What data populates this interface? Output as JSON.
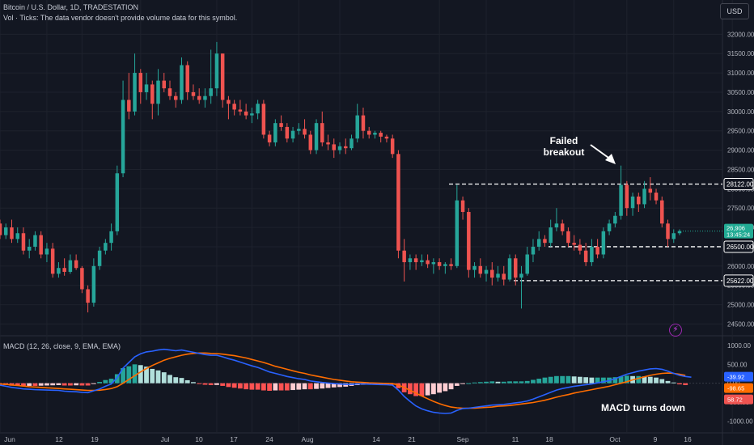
{
  "header": {
    "symbol_line": "Bitcoin / U.S. Dollar, 1D, TRADESTATION",
    "volume_note": "Vol · Ticks: The data vendor doesn't provide volume data for this symbol.",
    "currency_button": "USD",
    "macd_title": "MACD (12, 26, close, 9, EMA, EMA)"
  },
  "colors": {
    "background": "#131722",
    "up": "#26a69a",
    "down": "#ef5350",
    "macd_line": "#2962ff",
    "signal_line": "#ff6d00",
    "price_badge": "#22ab94",
    "grid": "#1e222d",
    "text": "#b2b5be"
  },
  "icons": {
    "alert": "lightning-bolt-icon"
  },
  "chart_data": [
    {
      "type": "candlestick",
      "title": "Bitcoin / U.S. Dollar, 1D",
      "y_ticks": [
        32000,
        31500,
        31000,
        30500,
        30000,
        29500,
        29000,
        28500,
        28000,
        27500,
        27000,
        26500,
        26000,
        25500,
        25000,
        24500
      ],
      "ylim": [
        24300,
        32300
      ],
      "x_tick_labels": [
        "Jun",
        "12",
        "19",
        "Jul",
        "10",
        "17",
        "24",
        "Aug",
        "14",
        "21",
        "Sep",
        "11",
        "18",
        "Oct",
        "9",
        "16"
      ],
      "last_price_label": "26,906",
      "countdown": "13:45:24",
      "price_lines": [
        {
          "label": "28122.00",
          "value": 28122
        },
        {
          "label": "26500.00",
          "value": 26500
        },
        {
          "label": "25622.00",
          "value": 25622
        }
      ],
      "annotations": [
        {
          "text_line1": "Failed",
          "text_line2": "breakout"
        }
      ],
      "candles": [
        [
          27100,
          27200,
          26700,
          26800
        ],
        [
          26800,
          27100,
          26700,
          27000
        ],
        [
          27000,
          27200,
          26600,
          26700
        ],
        [
          26700,
          27000,
          26600,
          26850
        ],
        [
          26850,
          27000,
          26300,
          26400
        ],
        [
          26400,
          26700,
          26200,
          26500
        ],
        [
          26500,
          26900,
          26400,
          26800
        ],
        [
          26800,
          26900,
          26200,
          26300
        ],
        [
          26300,
          26600,
          26100,
          26450
        ],
        [
          26450,
          26600,
          25700,
          25800
        ],
        [
          25800,
          26100,
          25700,
          25950
        ],
        [
          25950,
          26200,
          25750,
          25850
        ],
        [
          25850,
          26300,
          25800,
          26150
        ],
        [
          26150,
          26300,
          25900,
          25950
        ],
        [
          25950,
          26000,
          25300,
          25400
        ],
        [
          25400,
          25500,
          24800,
          25050
        ],
        [
          25050,
          26200,
          24950,
          26000
        ],
        [
          26000,
          26500,
          25900,
          26400
        ],
        [
          26400,
          26700,
          26300,
          26600
        ],
        [
          26600,
          27100,
          26400,
          26900
        ],
        [
          26900,
          28600,
          26800,
          28400
        ],
        [
          28400,
          30800,
          28300,
          30300
        ],
        [
          30300,
          31000,
          29800,
          30000
        ],
        [
          30000,
          31500,
          29900,
          31000
        ],
        [
          31000,
          31100,
          30200,
          30500
        ],
        [
          30500,
          31000,
          30300,
          30700
        ],
        [
          30700,
          30800,
          29800,
          30200
        ],
        [
          30200,
          31100,
          29900,
          30800
        ],
        [
          30800,
          31000,
          30500,
          30600
        ],
        [
          30600,
          30800,
          30300,
          30400
        ],
        [
          30400,
          30500,
          30100,
          30300
        ],
        [
          30300,
          31400,
          30200,
          31200
        ],
        [
          31200,
          31300,
          30300,
          30500
        ],
        [
          30500,
          30700,
          30300,
          30400
        ],
        [
          30400,
          30600,
          30200,
          30300
        ],
        [
          30300,
          30600,
          30100,
          30400
        ],
        [
          30400,
          31600,
          30200,
          30600
        ],
        [
          30600,
          31800,
          30400,
          31500
        ],
        [
          31500,
          31500,
          30100,
          30300
        ],
        [
          30300,
          30400,
          29800,
          30200
        ],
        [
          30200,
          30300,
          29900,
          30050
        ],
        [
          30050,
          30300,
          29900,
          30000
        ],
        [
          30000,
          30200,
          29800,
          29900
        ],
        [
          29900,
          30100,
          29700,
          29950
        ],
        [
          29950,
          30300,
          29800,
          30200
        ],
        [
          30200,
          30300,
          29300,
          29400
        ],
        [
          29400,
          29500,
          29100,
          29200
        ],
        [
          29200,
          29800,
          29100,
          29700
        ],
        [
          29700,
          29900,
          29500,
          29600
        ],
        [
          29600,
          29700,
          29200,
          29300
        ],
        [
          29300,
          29600,
          29200,
          29500
        ],
        [
          29500,
          29700,
          29400,
          29550
        ],
        [
          29550,
          29800,
          29300,
          29400
        ],
        [
          29400,
          29500,
          28900,
          29000
        ],
        [
          29000,
          29800,
          28900,
          29700
        ],
        [
          29700,
          30000,
          29100,
          29200
        ],
        [
          29200,
          29400,
          29000,
          29150
        ],
        [
          29150,
          29300,
          28800,
          29000
        ],
        [
          29000,
          29200,
          28900,
          29100
        ],
        [
          29100,
          29300,
          28900,
          29050
        ],
        [
          29050,
          29400,
          29000,
          29300
        ],
        [
          29300,
          30200,
          29200,
          29900
        ],
        [
          29900,
          30100,
          29300,
          29500
        ],
        [
          29500,
          29600,
          29300,
          29400
        ],
        [
          29400,
          29500,
          29300,
          29450
        ],
        [
          29450,
          29500,
          29200,
          29350
        ],
        [
          29350,
          29400,
          29200,
          29300
        ],
        [
          29300,
          29400,
          28800,
          28900
        ],
        [
          28900,
          29000,
          26200,
          26400
        ],
        [
          26400,
          26700,
          25600,
          26100
        ],
        [
          26100,
          26300,
          25900,
          26200
        ],
        [
          26200,
          26300,
          25900,
          26100
        ],
        [
          26100,
          26300,
          26000,
          26150
        ],
        [
          26150,
          26300,
          25950,
          26050
        ],
        [
          26050,
          26200,
          25800,
          26100
        ],
        [
          26100,
          26200,
          25900,
          26000
        ],
        [
          26000,
          26100,
          25800,
          26050
        ],
        [
          26050,
          26200,
          25900,
          26000
        ],
        [
          26000,
          28100,
          25950,
          27700
        ],
        [
          27700,
          27800,
          27200,
          27400
        ],
        [
          27400,
          27500,
          25700,
          25900
        ],
        [
          25900,
          26100,
          25700,
          26000
        ],
        [
          26000,
          26200,
          25700,
          25800
        ],
        [
          25800,
          26000,
          25600,
          25900
        ],
        [
          25900,
          26100,
          25500,
          25700
        ],
        [
          25700,
          26000,
          25600,
          25800
        ],
        [
          25800,
          26000,
          25500,
          25650
        ],
        [
          25650,
          26300,
          25600,
          26200
        ],
        [
          26200,
          26300,
          25500,
          25700
        ],
        [
          25700,
          26000,
          24900,
          25800
        ],
        [
          25800,
          26500,
          25750,
          26300
        ],
        [
          26300,
          26700,
          26100,
          26500
        ],
        [
          26500,
          26900,
          26400,
          26700
        ],
        [
          26700,
          26800,
          26500,
          26600
        ],
        [
          26600,
          27200,
          26500,
          27000
        ],
        [
          27000,
          27500,
          26900,
          27100
        ],
        [
          27100,
          27200,
          26800,
          26900
        ],
        [
          26900,
          27000,
          26500,
          26600
        ],
        [
          26600,
          26800,
          26400,
          26550
        ],
        [
          26550,
          26700,
          26300,
          26400
        ],
        [
          26400,
          26600,
          26000,
          26100
        ],
        [
          26100,
          26700,
          26000,
          26500
        ],
        [
          26500,
          26700,
          26200,
          26300
        ],
        [
          26300,
          27000,
          26200,
          26900
        ],
        [
          26900,
          27200,
          26800,
          27100
        ],
        [
          27100,
          27400,
          27000,
          27300
        ],
        [
          27300,
          28600,
          27200,
          28100
        ],
        [
          28100,
          28200,
          27300,
          27500
        ],
        [
          27500,
          27900,
          27300,
          27800
        ],
        [
          27800,
          27900,
          27400,
          27600
        ],
        [
          27600,
          28200,
          27500,
          28000
        ],
        [
          28000,
          28300,
          27700,
          27900
        ],
        [
          27900,
          28000,
          27600,
          27700
        ],
        [
          27700,
          27800,
          27000,
          27100
        ],
        [
          27100,
          27200,
          26500,
          26700
        ],
        [
          26700,
          26950,
          26600,
          26850
        ],
        [
          26850,
          26950,
          26800,
          26906
        ]
      ]
    },
    {
      "type": "macd",
      "title": "MACD (12, 26, close, 9, EMA, EMA)",
      "y_ticks": [
        1000,
        500,
        0,
        -500,
        -1000
      ],
      "ylim": [
        -1250,
        1150
      ],
      "value_badges": [
        "-39.92",
        "-98.65",
        "58.72"
      ],
      "annotations": [
        {
          "text": "MACD turns down"
        }
      ],
      "macd_line": [
        -50,
        -80,
        -110,
        -130,
        -150,
        -160,
        -170,
        -175,
        -180,
        -185,
        -190,
        -210,
        -220,
        -225,
        -240,
        -250,
        -200,
        -150,
        -80,
        -20,
        150,
        400,
        550,
        700,
        780,
        830,
        850,
        880,
        900,
        880,
        860,
        880,
        850,
        820,
        790,
        760,
        740,
        740,
        700,
        650,
        610,
        560,
        510,
        460,
        420,
        360,
        300,
        260,
        220,
        180,
        150,
        120,
        100,
        60,
        40,
        20,
        5,
        -10,
        -20,
        -30,
        -30,
        -20,
        -20,
        -25,
        -30,
        -35,
        -40,
        -50,
        -180,
        -350,
        -480,
        -600,
        -680,
        -730,
        -770,
        -790,
        -800,
        -790,
        -720,
        -670,
        -660,
        -640,
        -620,
        -600,
        -580,
        -570,
        -560,
        -540,
        -520,
        -500,
        -470,
        -420,
        -360,
        -300,
        -240,
        -180,
        -140,
        -110,
        -80,
        -60,
        -40,
        -20,
        10,
        40,
        70,
        120,
        180,
        240,
        280,
        320,
        350,
        380,
        390,
        370,
        320,
        260,
        210,
        180,
        160
      ],
      "signal_line": [
        -20,
        -30,
        -45,
        -60,
        -75,
        -90,
        -100,
        -110,
        -120,
        -130,
        -140,
        -150,
        -160,
        -170,
        -180,
        -190,
        -190,
        -185,
        -165,
        -140,
        -90,
        0,
        100,
        200,
        300,
        390,
        470,
        540,
        610,
        660,
        700,
        740,
        770,
        790,
        800,
        800,
        790,
        785,
        770,
        750,
        730,
        700,
        670,
        630,
        590,
        550,
        500,
        450,
        410,
        370,
        330,
        290,
        260,
        220,
        190,
        160,
        130,
        100,
        80,
        60,
        40,
        30,
        20,
        10,
        5,
        0,
        -5,
        -10,
        -50,
        -110,
        -190,
        -260,
        -340,
        -410,
        -480,
        -540,
        -590,
        -630,
        -650,
        -660,
        -660,
        -660,
        -650,
        -640,
        -630,
        -610,
        -600,
        -590,
        -570,
        -550,
        -530,
        -510,
        -480,
        -450,
        -410,
        -370,
        -330,
        -300,
        -260,
        -230,
        -200,
        -170,
        -140,
        -110,
        -80,
        -40,
        0,
        40,
        90,
        130,
        170,
        210,
        240,
        260,
        270,
        260,
        240,
        210
      ],
      "histogram": [
        -30,
        -50,
        -65,
        -70,
        -75,
        -70,
        -70,
        -65,
        -60,
        -55,
        -50,
        -60,
        -60,
        -55,
        -60,
        -60,
        -10,
        35,
        85,
        120,
        240,
        400,
        450,
        500,
        480,
        440,
        380,
        340,
        290,
        220,
        160,
        140,
        80,
        30,
        -10,
        -40,
        -50,
        -45,
        -70,
        -100,
        -120,
        -140,
        -160,
        -170,
        -170,
        -190,
        -200,
        -190,
        -190,
        -190,
        -180,
        -170,
        -160,
        -160,
        -150,
        -140,
        -125,
        -110,
        -100,
        -90,
        -70,
        -50,
        -40,
        -35,
        -35,
        -35,
        -35,
        -40,
        -130,
        -240,
        -290,
        -340,
        -340,
        -320,
        -290,
        -250,
        -210,
        -160,
        -70,
        -10,
        0,
        20,
        30,
        40,
        50,
        40,
        40,
        50,
        50,
        50,
        60,
        90,
        120,
        150,
        170,
        190,
        190,
        190,
        180,
        170,
        160,
        150,
        150,
        150,
        150,
        160,
        180,
        200,
        190,
        190,
        180,
        170,
        150,
        110,
        60,
        20,
        -30,
        -50
      ]
    }
  ]
}
